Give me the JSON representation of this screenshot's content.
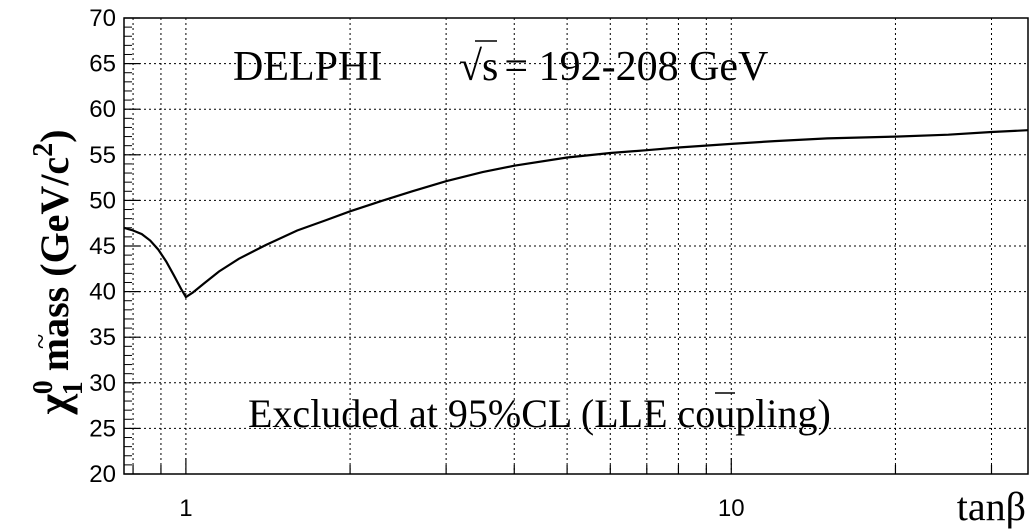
{
  "chart_data": {
    "type": "line",
    "experiment_label": "DELPHI",
    "energy_label_root": "√s",
    "energy_label_value": "= 192-208 GeV",
    "annotation_main": "Excluded at 95%CL (LL",
    "annotation_e": "E",
    "annotation_tail": " coupling)",
    "xlabel": "tanβ",
    "ylabel_mass": "mass (GeV/c",
    "ylabel_chi": "χ",
    "ylabel_sup": "0",
    "ylabel_sub": "1",
    "ylabel_pow": "2",
    "ylabel_close": ")",
    "x_scale": "log",
    "xlim": [
      0.77,
      35
    ],
    "ylim": [
      20,
      70
    ],
    "x_tick_labels": [
      {
        "value": 1,
        "label": "1"
      },
      {
        "value": 10,
        "label": "10"
      }
    ],
    "y_ticks": [
      20,
      25,
      30,
      35,
      40,
      45,
      50,
      55,
      60,
      65,
      70
    ],
    "grid": true,
    "series": [
      {
        "color": "#000000",
        "points": [
          [
            0.77,
            47.0
          ],
          [
            0.8,
            46.7
          ],
          [
            0.83,
            46.3
          ],
          [
            0.86,
            45.6
          ],
          [
            0.89,
            44.6
          ],
          [
            0.92,
            43.3
          ],
          [
            0.95,
            41.8
          ],
          [
            0.98,
            40.3
          ],
          [
            1.0,
            39.4
          ],
          [
            1.03,
            39.9
          ],
          [
            1.08,
            40.9
          ],
          [
            1.15,
            42.2
          ],
          [
            1.25,
            43.6
          ],
          [
            1.4,
            45.1
          ],
          [
            1.6,
            46.7
          ],
          [
            1.8,
            47.8
          ],
          [
            2.0,
            48.8
          ],
          [
            2.3,
            50.0
          ],
          [
            2.6,
            51.0
          ],
          [
            3.0,
            52.1
          ],
          [
            3.5,
            53.1
          ],
          [
            4.0,
            53.8
          ],
          [
            5.0,
            54.7
          ],
          [
            6.0,
            55.2
          ],
          [
            7.0,
            55.5
          ],
          [
            8.0,
            55.8
          ],
          [
            10.0,
            56.2
          ],
          [
            12.0,
            56.5
          ],
          [
            15.0,
            56.8
          ],
          [
            20.0,
            57.0
          ],
          [
            25.0,
            57.2
          ],
          [
            30.0,
            57.5
          ],
          [
            35.0,
            57.7
          ]
        ]
      }
    ]
  }
}
